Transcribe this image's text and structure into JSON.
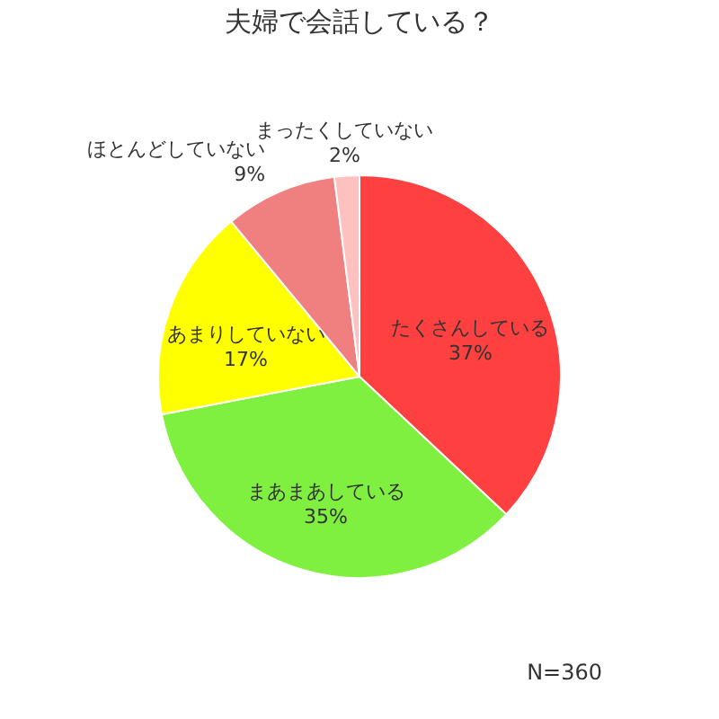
{
  "chart_data": {
    "type": "pie",
    "title": "夫婦で会話している？",
    "categories": [
      "たくさんしている",
      "まあまあしている",
      "あまりしていない",
      "ほとんどしていない",
      "まったくしていない"
    ],
    "values": [
      37,
      35,
      17,
      9,
      2
    ],
    "value_labels": [
      "37%",
      "35%",
      "17%",
      "9%",
      "2%"
    ],
    "colors": [
      "#ff4040",
      "#80f040",
      "#ffff00",
      "#f08080",
      "#ffc0c0"
    ],
    "legend": false,
    "annotations": [
      "N=360"
    ]
  }
}
